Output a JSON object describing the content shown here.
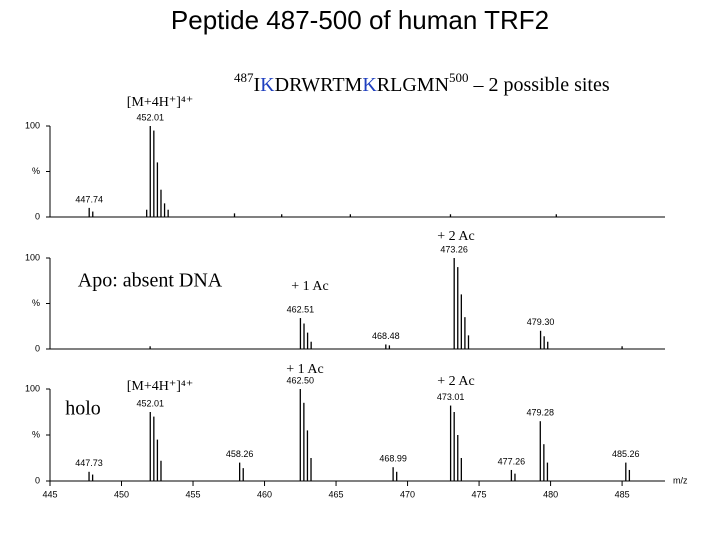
{
  "title": "Peptide 487-500 of human TRF2",
  "sequence": {
    "start": "487",
    "residues": [
      "I",
      "K",
      "DRWRTM",
      "K",
      "RLGMN"
    ],
    "end": "500",
    "note": " – 2 possible sites"
  },
  "chart_data": [
    {
      "type": "spectrum",
      "color": "#000000",
      "annotations": [
        "[M+4H⁺]⁴⁺"
      ],
      "x": [
        447.74,
        447.99,
        451.76,
        452.01,
        452.26,
        452.51,
        452.76,
        453.01,
        453.26,
        457.9,
        461.2,
        466.0,
        473.0,
        480.4
      ],
      "values": [
        10,
        6,
        8,
        100,
        95,
        60,
        30,
        15,
        8,
        4,
        3,
        3,
        3,
        3
      ],
      "x_labels": [
        "447.74",
        null,
        null,
        "452.01",
        null,
        null,
        null,
        null,
        null,
        null,
        null,
        null,
        null,
        null
      ],
      "xlim": [
        445,
        488
      ],
      "ylim": [
        0,
        100
      ],
      "yticks": [
        0,
        {
          "value": 50,
          "label": "%"
        },
        100
      ]
    },
    {
      "type": "spectrum",
      "color": "#000000",
      "annotations": [
        "+ 2 Ac",
        "Apo: absent DNA",
        "+ 1 Ac"
      ],
      "x": [
        452.0,
        462.51,
        462.76,
        463.01,
        463.26,
        468.48,
        468.73,
        473.26,
        473.51,
        473.76,
        474.01,
        474.26,
        479.3,
        479.55,
        479.8,
        485.0
      ],
      "values": [
        3,
        34,
        28,
        18,
        8,
        5,
        4,
        100,
        90,
        60,
        35,
        15,
        20,
        14,
        8,
        3
      ],
      "x_labels": [
        null,
        "462.51",
        null,
        null,
        null,
        "468.48",
        null,
        "473.26",
        null,
        null,
        null,
        null,
        "479.30",
        null,
        null,
        null
      ],
      "xlim": [
        445,
        488
      ],
      "ylim": [
        0,
        100
      ],
      "yticks": [
        0,
        {
          "value": 50,
          "label": "%"
        },
        100
      ]
    },
    {
      "type": "spectrum",
      "color": "#000000",
      "annotations": [
        "+ 1 Ac",
        "+ 2 Ac",
        "[M+4H⁺]⁴⁺",
        "holo"
      ],
      "x": [
        447.73,
        447.98,
        452.01,
        452.26,
        452.51,
        452.76,
        458.26,
        458.51,
        462.5,
        462.75,
        463.0,
        463.25,
        468.99,
        469.24,
        473.01,
        473.26,
        473.51,
        473.76,
        477.26,
        477.51,
        479.28,
        479.53,
        479.78,
        485.26,
        485.51
      ],
      "values": [
        10,
        7,
        75,
        70,
        45,
        22,
        20,
        14,
        100,
        85,
        55,
        25,
        15,
        10,
        82,
        75,
        50,
        25,
        12,
        8,
        65,
        40,
        20,
        20,
        12
      ],
      "x_labels": [
        "447.73",
        null,
        "452.01",
        null,
        null,
        null,
        "458.26",
        null,
        "462.50",
        null,
        null,
        null,
        "468.99",
        null,
        "473.01",
        null,
        null,
        null,
        "477.26",
        null,
        "479.28",
        null,
        null,
        "485.26",
        null
      ],
      "xlim": [
        445,
        488
      ],
      "ylim": [
        0,
        100
      ],
      "yticks": [
        0,
        {
          "value": 50,
          "label": "%"
        },
        100
      ],
      "xticks": [
        445,
        450,
        455,
        460,
        465,
        470,
        475,
        480,
        485
      ],
      "xlabel": "m/z"
    }
  ]
}
